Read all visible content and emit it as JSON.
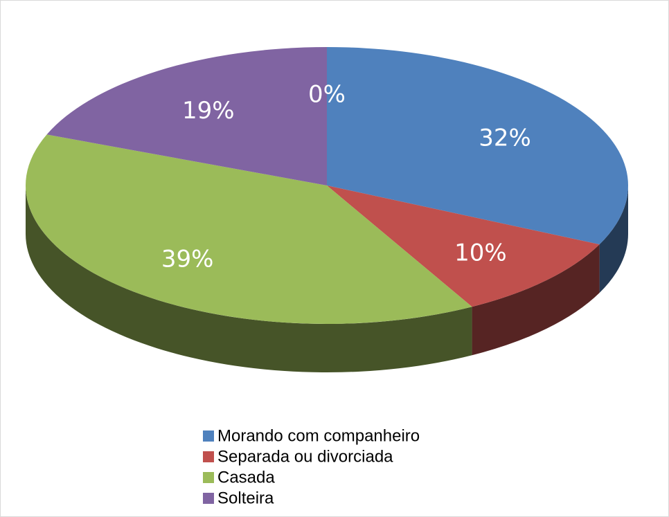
{
  "chart_data": {
    "type": "pie3d",
    "categories": [
      "Morando com companheiro",
      "Separada ou divorciada",
      "Casada",
      "Solteira",
      null
    ],
    "values": [
      32,
      10,
      39,
      19,
      0
    ],
    "value_labels": [
      "32%",
      "10%",
      "39%",
      "19%",
      "0%"
    ],
    "colors": [
      "#4f81bd",
      "#c0504d",
      "#9bbb59",
      "#8064a2",
      "#4bacc6"
    ],
    "legend": "bottom"
  }
}
